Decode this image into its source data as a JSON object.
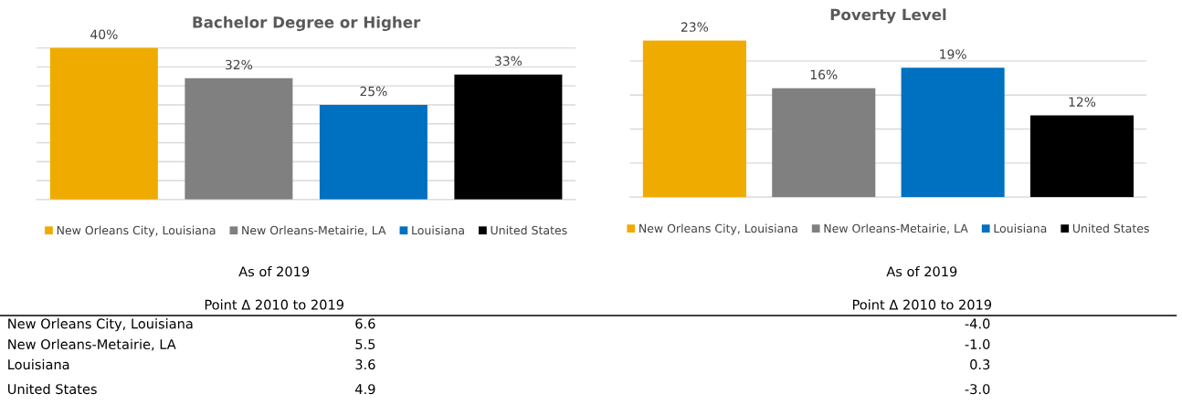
{
  "chart_data": [
    {
      "type": "bar",
      "title": "Bachelor Degree or Higher",
      "categories": [
        null
      ],
      "series": [
        {
          "name": "New Orleans City, Louisiana",
          "color": "#f0ab00",
          "values": [
            40
          ],
          "value_labels": [
            "40%"
          ]
        },
        {
          "name": "New Orleans-Metairie, LA",
          "color": "#808080",
          "values": [
            32
          ],
          "value_labels": [
            "32%"
          ]
        },
        {
          "name": "Louisiana",
          "color": "#0070c0",
          "values": [
            25
          ],
          "value_labels": [
            "25%"
          ]
        },
        {
          "name": "United States",
          "color": "#000000",
          "values": [
            33
          ],
          "value_labels": [
            "33%"
          ]
        }
      ],
      "grid": "y",
      "legend": "bottom",
      "annotations": [
        "As of 2019",
        "Point Δ 2010 to 2019",
        "6.6",
        "5.5",
        "3.6",
        "4.9"
      ]
    },
    {
      "type": "bar",
      "title": "Poverty Level",
      "categories": [
        null
      ],
      "series": [
        {
          "name": "New Orleans City, Louisiana",
          "color": "#f0ab00",
          "values": [
            23
          ],
          "value_labels": [
            "23%"
          ]
        },
        {
          "name": "New Orleans-Metairie, LA",
          "color": "#808080",
          "values": [
            16
          ],
          "value_labels": [
            "16%"
          ]
        },
        {
          "name": "Louisiana",
          "color": "#0070c0",
          "values": [
            19
          ],
          "value_labels": [
            "19%"
          ]
        },
        {
          "name": "United States",
          "color": "#000000",
          "values": [
            12
          ],
          "value_labels": [
            "12%"
          ]
        }
      ],
      "grid": "y",
      "legend": "bottom",
      "annotations": [
        "As of 2019",
        "Point Δ 2010 to 2019",
        "-4.0",
        "-1.0",
        "0.3",
        "-3.0"
      ]
    }
  ]
}
